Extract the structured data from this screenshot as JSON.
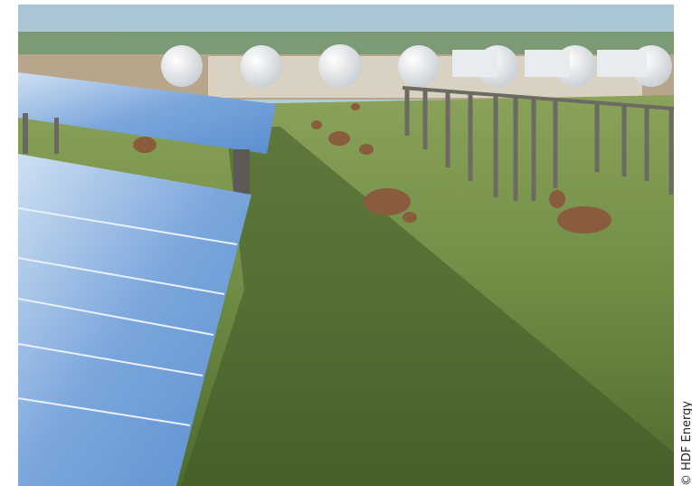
{
  "credit": "© HDF Energy"
}
